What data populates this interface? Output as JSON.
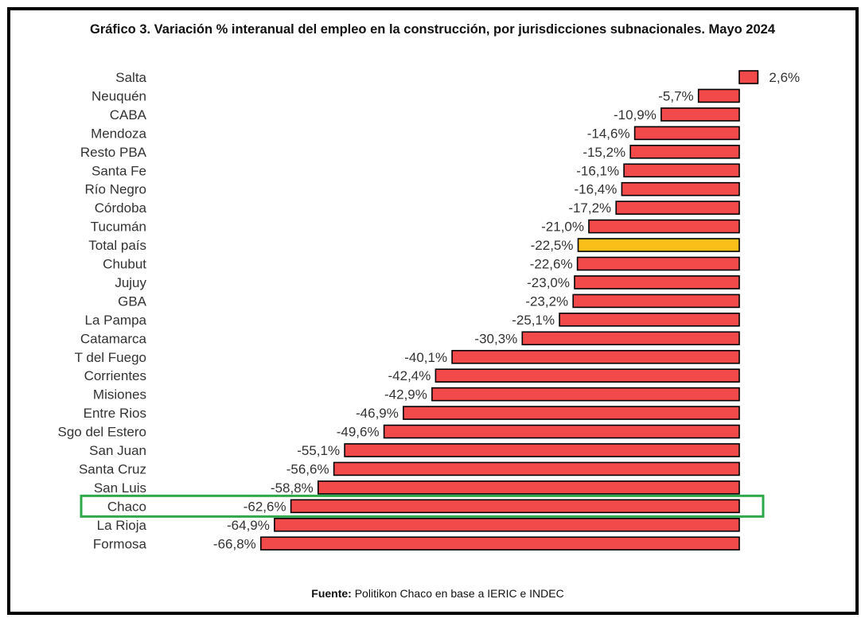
{
  "title": "Gráfico 3. Variación % interanual del empleo en la construcción, por jurisdicciones subnacionales. Mayo 2024",
  "source": {
    "label": "Fuente:",
    "text": " Politikon Chaco en base a IERIC e INDEC"
  },
  "chart_data": {
    "type": "bar",
    "orientation": "horizontal",
    "title": "Gráfico 3. Variación % interanual del empleo en la construcción, por jurisdicciones subnacionales. Mayo 2024",
    "categories": [
      "Salta",
      "Neuquén",
      "CABA",
      "Mendoza",
      "Resto PBA",
      "Santa Fe",
      "Río Negro",
      "Córdoba",
      "Tucumán",
      "Total país",
      "Chubut",
      "Jujuy",
      "GBA",
      "La Pampa",
      "Catamarca",
      "T del Fuego",
      "Corrientes",
      "Misiones",
      "Entre Rios",
      "Sgo del Estero",
      "San Juan",
      "Santa Cruz",
      "San Luis",
      "Chaco",
      "La Rioja",
      "Formosa"
    ],
    "values": [
      2.6,
      -5.7,
      -10.9,
      -14.6,
      -15.2,
      -16.1,
      -16.4,
      -17.2,
      -21.0,
      -22.5,
      -22.6,
      -23.0,
      -23.2,
      -25.1,
      -30.3,
      -40.1,
      -42.4,
      -42.9,
      -46.9,
      -49.6,
      -55.1,
      -56.6,
      -58.8,
      -62.6,
      -64.9,
      -66.8
    ],
    "labels": [
      "2,6%",
      "-5,7%",
      "-10,9%",
      "-14,6%",
      "-15,2%",
      "-16,1%",
      "-16,4%",
      "-17,2%",
      "-21,0%",
      "-22,5%",
      "-22,6%",
      "-23,0%",
      "-23,2%",
      "-25,1%",
      "-30,3%",
      "-40,1%",
      "-42,4%",
      "-42,9%",
      "-46,9%",
      "-49,6%",
      "-55,1%",
      "-56,6%",
      "-58,8%",
      "-62,6%",
      "-64,9%",
      "-66,8%"
    ],
    "highlight_category": "Total país",
    "boxed_category": "Chaco",
    "colors": {
      "bar": "#f24a4a",
      "highlight": "#fbbf1a",
      "bar_border": "#000000",
      "box": "#2ea84a"
    }
  }
}
